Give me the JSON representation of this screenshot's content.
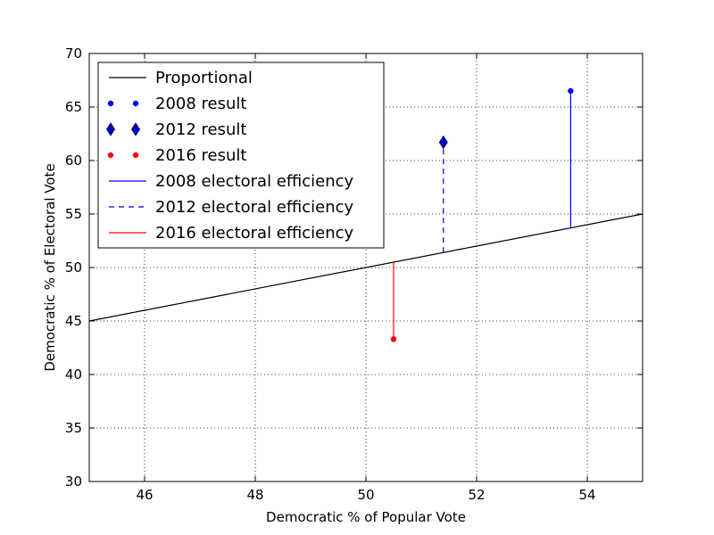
{
  "chart_data": {
    "type": "scatter",
    "xlabel": "Democratic % of Popular Vote",
    "ylabel": "Democratic % of Electoral Vote",
    "xlim": [
      45,
      55
    ],
    "ylim": [
      30,
      70
    ],
    "xticks": [
      46,
      48,
      50,
      52,
      54
    ],
    "yticks": [
      30,
      35,
      40,
      45,
      50,
      55,
      60,
      65,
      70
    ],
    "grid": true,
    "legend_position": "top-left",
    "proportional_line": {
      "name": "Proportional",
      "x": [
        45,
        55
      ],
      "y": [
        45,
        55
      ],
      "color": "#000000"
    },
    "results": [
      {
        "name": "2008 result",
        "x": 53.7,
        "y": 66.5,
        "marker": "circle",
        "color": "#0000ff"
      },
      {
        "name": "2012 result",
        "x": 51.4,
        "y": 61.7,
        "marker": "diamond",
        "color": "#0000cc"
      },
      {
        "name": "2016 result",
        "x": 50.5,
        "y": 43.3,
        "marker": "circle",
        "color": "#ff0000"
      }
    ],
    "efficiency": [
      {
        "name": "2008 electoral efficiency",
        "x": 53.7,
        "y_from": 53.7,
        "y_to": 66.5,
        "style": "solid",
        "color": "#0000ff"
      },
      {
        "name": "2012 electoral efficiency",
        "x": 51.4,
        "y_from": 51.4,
        "y_to": 61.7,
        "style": "dashed",
        "color": "#0000cc"
      },
      {
        "name": "2016 electoral efficiency",
        "x": 50.5,
        "y_from": 50.5,
        "y_to": 43.3,
        "style": "solid",
        "color": "#ff0000"
      }
    ]
  }
}
